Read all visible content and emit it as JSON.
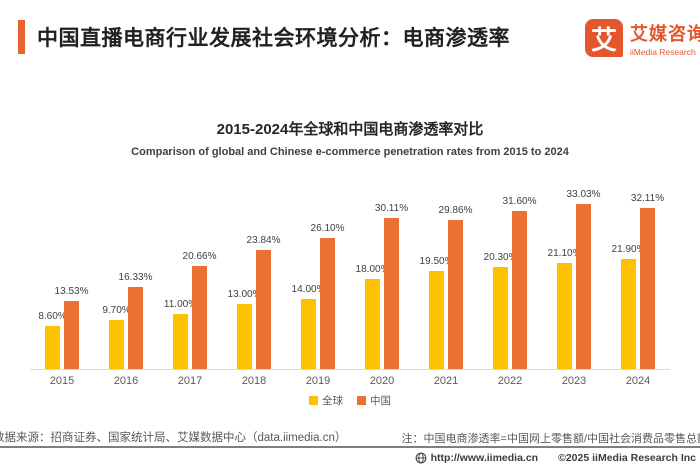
{
  "header": {
    "title": "中国直播电商行业发展社会环境分析：电商渗透率",
    "accent_color": "#E9622F"
  },
  "logo": {
    "mark_glyph": "艾",
    "cn": "艾媒咨询",
    "en": "iiMedia Research",
    "brand_color": "#E4572E"
  },
  "chart_data": {
    "type": "bar",
    "title": "2015-2024年全球和中国电商渗透率对比",
    "subtitle": "Comparison of global and Chinese e-commerce penetration rates from 2015 to 2024",
    "categories": [
      "2015",
      "2016",
      "2017",
      "2018",
      "2019",
      "2020",
      "2021",
      "2022",
      "2023",
      "2024"
    ],
    "series": [
      {
        "name": "全球",
        "color": "#FFC000",
        "values": [
          8.6,
          9.7,
          11.0,
          13.0,
          14.0,
          18.0,
          19.5,
          20.3,
          21.1,
          21.9
        ],
        "labels": [
          "8.60%",
          "9.70%",
          "11.00%",
          "13.00%",
          "14.00%",
          "18.00%",
          "19.50%",
          "20.30%",
          "21.10%",
          "21.90%"
        ]
      },
      {
        "name": "中国",
        "color": "#E97132",
        "values": [
          13.53,
          16.33,
          20.66,
          23.84,
          26.1,
          30.11,
          29.86,
          31.6,
          33.03,
          32.11
        ],
        "labels": [
          "13.53%",
          "16.33%",
          "20.66%",
          "23.84%",
          "26.10%",
          "30.11%",
          "29.86%",
          "31.60%",
          "33.03%",
          "32.11%"
        ]
      }
    ],
    "xlabel": "",
    "ylabel": "",
    "ylim": [
      0,
      35
    ],
    "grid": false,
    "legend_position": "bottom"
  },
  "footer": {
    "source": "数据来源：招商证券、国家统计局、艾媒数据中心（data.iimedia.cn）",
    "note": "注：中国电商渗透率=中国网上零售额/中国社会消费品零售总额",
    "website": "http://www.iimedia.cn",
    "copyright": "©2025 iiMedia Research Inc"
  }
}
